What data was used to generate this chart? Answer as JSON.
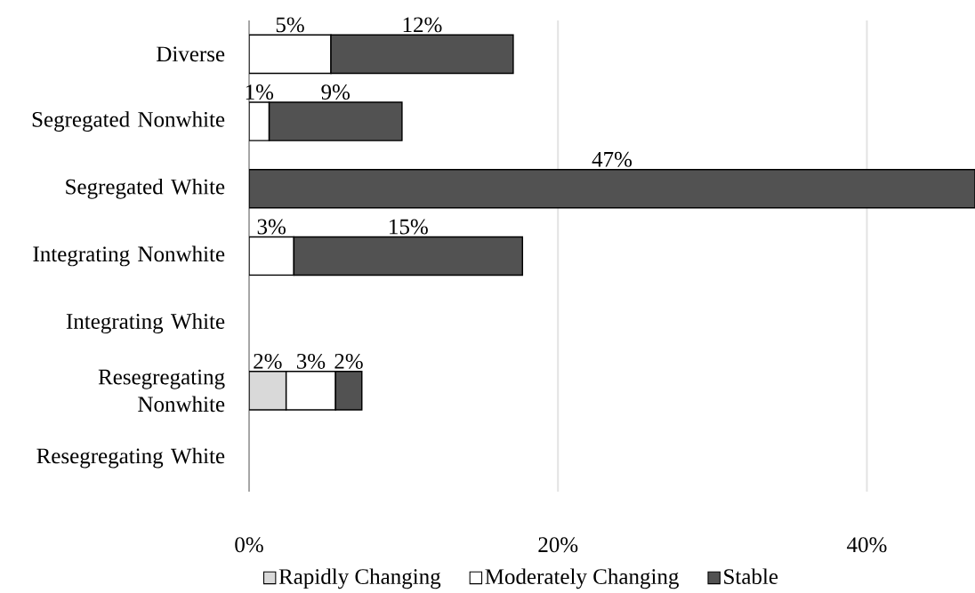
{
  "chart_data": {
    "type": "bar",
    "orientation": "horizontal",
    "stacked": true,
    "categories": [
      "Diverse",
      "Segregated Nonwhite",
      "Segregated White",
      "Integrating Nonwhite",
      "Integrating White",
      "Resegregating Nonwhite",
      "Resegregating White"
    ],
    "series": [
      {
        "name": "Rapidly Changing",
        "color": "#d9d9d9",
        "values": [
          null,
          null,
          null,
          null,
          null,
          2.4,
          null
        ],
        "value_labels": [
          null,
          null,
          null,
          null,
          null,
          "2%",
          null
        ]
      },
      {
        "name": "Moderately Changing",
        "color": "#ffffff",
        "values": [
          5.3,
          1.3,
          null,
          2.9,
          null,
          3.2,
          null
        ],
        "value_labels": [
          "5%",
          "1%",
          null,
          "3%",
          null,
          "3%",
          null
        ]
      },
      {
        "name": "Stable",
        "color": "#525252",
        "values": [
          11.8,
          8.6,
          47,
          14.8,
          null,
          1.7,
          null
        ],
        "value_labels": [
          "12%",
          "9%",
          "47%",
          "15%",
          null,
          "2%",
          null
        ]
      }
    ],
    "xlim": [
      0,
      47
    ],
    "xticks": [
      {
        "value": 0,
        "label": "0%"
      },
      {
        "value": 20,
        "label": "20%"
      },
      {
        "value": 40,
        "label": "40%"
      }
    ],
    "grid": "x",
    "legend": "bottom"
  }
}
